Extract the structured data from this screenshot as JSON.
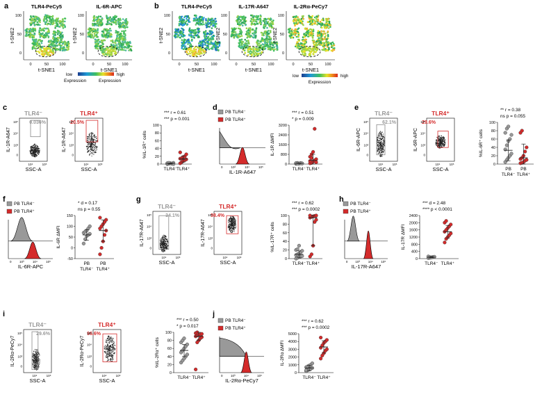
{
  "panels": {
    "a": {
      "letter": "a",
      "titles": [
        "TLR4-PeCy5",
        "IL-6R-APC"
      ],
      "xlabel": "t-SNE1",
      "ylabel": "t-SNE2",
      "ticks_x": [
        "0",
        "50",
        "100"
      ],
      "ticks_y": [
        "0",
        "50",
        "100"
      ]
    },
    "b": {
      "letter": "b",
      "titles": [
        "TLR4-PeCy5",
        "IL-17R-A647",
        "IL-2Rα-PeCy7"
      ],
      "xlabel": "t-SNE1",
      "ylabel": "t-SNE2",
      "ticks_x": [
        "0",
        "50",
        "100"
      ],
      "ticks_y": [
        "0",
        "50",
        "100"
      ]
    },
    "legend_a": {
      "low": "low",
      "high": "high",
      "expr1": "Expression",
      "expr2": "Expression"
    },
    "legend_b": {
      "low": "low",
      "high": "high",
      "expr": "Expression"
    },
    "c": {
      "letter": "c",
      "neg_title": "TLR4⁻",
      "pos_title": "TLR4⁺",
      "neg_pct": "0.036%",
      "pos_pct": "20.5%",
      "ylabel": "IL-1R-A647",
      "xlabel": "SSC-A",
      "stat_r": "r = 0.61",
      "stat_p": "p = 0.001",
      "stars_r": "***",
      "stars_p": "***",
      "yaxis": "%IL-1R⁺ cells",
      "yticks": [
        "0",
        "20",
        "40",
        "60",
        "80",
        "100"
      ],
      "xcats": [
        "TLR4⁻",
        "TLR4⁺"
      ]
    },
    "d": {
      "letter": "d",
      "legend_neg": "PB TLR4⁻",
      "legend_pos": "PB TLR4⁺",
      "xlabel": "IL-1R-A647",
      "stat_r": "r = 0.51",
      "stat_p": "p = 0.009",
      "stars_r": "***",
      "stars_p": "*",
      "yaxis": "IL-1R ΔMFI",
      "yticks": [
        "0",
        "800",
        "1600",
        "2400",
        "3200"
      ],
      "xcats": [
        "TLR4⁻",
        "TLR4⁺"
      ]
    },
    "e": {
      "letter": "e",
      "neg_title": "TLR4⁻",
      "pos_title": "TLR4⁺",
      "neg_pct": "62.1%",
      "pos_pct": "29.6%",
      "ylabel": "IL-6R-APC",
      "xlabel": "SSC-A",
      "stat_r": "r = 0.38",
      "stat_p": "p = 0.055",
      "stars_r": "**",
      "stars_p": "ns",
      "yaxis": "%IL-6R⁺ cells",
      "yticks": [
        "0",
        "20",
        "40",
        "60",
        "80",
        "100"
      ],
      "xcats": [
        "PB TLR4⁻",
        "PB TLR4⁺"
      ]
    },
    "f": {
      "letter": "f",
      "legend_neg": "PB TLR4⁻",
      "legend_pos": "PB TLR4⁺",
      "xlabel": "IL-6R-APC",
      "stat_r": "d = 0.17",
      "stat_p": "p = 0.55",
      "stars_r": "*",
      "stars_p": "ns",
      "yaxis": "IL-6R ΔMFI",
      "yticks": [
        "-50",
        "0",
        "50",
        "100",
        "150"
      ],
      "xcats": [
        "PB TLR4⁻",
        "PB TLR4⁺"
      ]
    },
    "g": {
      "letter": "g",
      "neg_title": "TLR4⁻",
      "pos_title": "TLR4⁺",
      "neg_pct": "34.1%",
      "pos_pct": "98.4%",
      "ylabel": "IL-17R-A647",
      "xlabel": "SSC-A",
      "stat_r": "r = 0.62",
      "stat_p": "p = 0.0002",
      "stars_r": "***",
      "stars_p": "***",
      "yaxis": "%IL-17R⁺ cells",
      "yticks": [
        "0",
        "20",
        "40",
        "60",
        "80",
        "100"
      ],
      "xcats": [
        "TLR4⁻",
        "TLR4⁺"
      ]
    },
    "h": {
      "letter": "h",
      "legend_neg": "PB TLR4⁻",
      "legend_pos": "PB TLR4⁺",
      "xlabel": "IL-17R-A647",
      "stat_r": "d = 2.48",
      "stat_p": "p < 0.0001",
      "stars_r": "***",
      "stars_p": "****",
      "yaxis": "IL-17R ΔMFI",
      "yticks": [
        "0",
        "400",
        "800",
        "1200",
        "1600",
        "2000",
        "2400"
      ],
      "xcats": [
        "TLR4⁻",
        "TLR4⁺"
      ]
    },
    "i": {
      "letter": "i",
      "neg_title": "TLR4⁻",
      "pos_title": "TLR4⁺",
      "neg_pct": "29.6%",
      "pos_pct": "96.6%",
      "ylabel": "IL-2Rα-PeCy7",
      "xlabel": "SSC-A",
      "stat_r": "r = 0.50",
      "stat_p": "p = 0.017",
      "stars_r": "***",
      "stars_p": "*",
      "yaxis": "%IL-2Rα⁺ cells",
      "yticks": [
        "0",
        "20",
        "40",
        "60",
        "80",
        "100"
      ],
      "xcats": [
        "TLR4⁻",
        "TLR4⁺"
      ]
    },
    "j": {
      "letter": "j",
      "legend_neg": "PB TLR4⁻",
      "legend_pos": "PB TLR4⁺",
      "xlabel": "IL-2Rα-PeCy7",
      "stat_r": "r = 0.62",
      "stat_p": "p = 0.0002",
      "stars_r": "***",
      "stars_p": "***",
      "yaxis": "IL-2Rα ΔMFI",
      "yticks": [
        "0",
        "1000",
        "2000",
        "3000",
        "4000",
        "5000"
      ],
      "xcats": [
        "TLR4⁻",
        "TLR4⁺"
      ]
    }
  },
  "colors": {
    "neg": "#999999",
    "pos": "#d42b2b",
    "neg_text": "#999999",
    "pos_text": "#d42b2b"
  },
  "chart_data": [
    {
      "panel": "c",
      "type": "scatter",
      "ylim": [
        0,
        100
      ],
      "series": [
        {
          "name": "TLR4-",
          "values": [
            0,
            1,
            2,
            1,
            3,
            2,
            1,
            2,
            1,
            0,
            2,
            3
          ]
        },
        {
          "name": "TLR4+",
          "values": [
            2,
            5,
            8,
            10,
            12,
            14,
            15,
            18,
            20,
            25,
            30,
            5,
            8
          ]
        }
      ],
      "mean": [
        1.5,
        13
      ],
      "sd": [
        1,
        8
      ]
    },
    {
      "panel": "d",
      "type": "scatter",
      "ylim": [
        0,
        3200
      ],
      "series": [
        {
          "name": "TLR4-",
          "values": [
            30,
            60,
            40,
            80,
            50,
            70,
            90,
            40,
            60,
            50,
            80,
            30
          ]
        },
        {
          "name": "TLR4+",
          "values": [
            60,
            100,
            200,
            300,
            400,
            600,
            800,
            1000,
            2900,
            150,
            250,
            500
          ]
        }
      ],
      "mean": [
        55,
        300
      ],
      "sd": [
        20,
        500
      ]
    },
    {
      "panel": "e",
      "type": "scatter",
      "ylim": [
        0,
        100
      ],
      "series": [
        {
          "name": "PB TLR4-",
          "values": [
            5,
            10,
            15,
            20,
            25,
            35,
            45,
            55,
            60,
            70,
            75,
            85,
            90
          ]
        },
        {
          "name": "PB TLR4+",
          "values": [
            2,
            3,
            5,
            8,
            10,
            12,
            15,
            20,
            30,
            40,
            75,
            80
          ]
        }
      ],
      "mean": [
        33,
        15
      ],
      "sd": [
        25,
        33
      ]
    },
    {
      "panel": "f",
      "type": "scatter",
      "ylim": [
        -50,
        150
      ],
      "series": [
        {
          "name": "PB TLR4-",
          "values": [
            20,
            40,
            55,
            60,
            65,
            70,
            75,
            80,
            90,
            100
          ]
        },
        {
          "name": "PB TLR4+",
          "values": [
            -30,
            0,
            30,
            60,
            80,
            90,
            100,
            110,
            120,
            130,
            140
          ]
        }
      ],
      "mean": [
        60,
        80
      ],
      "sd": [
        25,
        50
      ]
    },
    {
      "panel": "g",
      "type": "scatter",
      "ylim": [
        0,
        100
      ],
      "series": [
        {
          "name": "TLR4-",
          "values": [
            0,
            2,
            4,
            5,
            6,
            8,
            10,
            12,
            15,
            18,
            20,
            22,
            30
          ]
        },
        {
          "name": "TLR4+",
          "values": [
            5,
            10,
            30,
            85,
            90,
            95,
            97,
            98,
            99,
            100,
            100
          ]
        }
      ],
      "mean": [
        10,
        95
      ],
      "sd": [
        8,
        65
      ]
    },
    {
      "panel": "h",
      "type": "scatter",
      "ylim": [
        0,
        2400
      ],
      "series": [
        {
          "name": "TLR4-",
          "values": [
            30,
            50,
            70,
            90,
            100,
            120,
            80,
            60
          ]
        },
        {
          "name": "TLR4+",
          "values": [
            900,
            1100,
            1200,
            1300,
            1400,
            1500,
            1600,
            1700,
            1800,
            1900,
            2000,
            2100
          ]
        }
      ],
      "mean": [
        80,
        1500
      ],
      "sd": [
        30,
        350
      ]
    },
    {
      "panel": "i",
      "type": "scatter",
      "ylim": [
        0,
        100
      ],
      "series": [
        {
          "name": "TLR4-",
          "values": [
            25,
            30,
            35,
            40,
            45,
            50,
            55,
            60,
            65,
            70,
            75,
            80,
            85
          ]
        },
        {
          "name": "TLR4+",
          "values": [
            8,
            75,
            80,
            85,
            88,
            90,
            92,
            94,
            95,
            96,
            98,
            100
          ]
        }
      ],
      "mean": [
        55,
        90
      ],
      "sd": [
        15,
        10
      ]
    },
    {
      "panel": "j",
      "type": "scatter",
      "ylim": [
        0,
        5000
      ],
      "series": [
        {
          "name": "TLR4-",
          "values": [
            200,
            300,
            400,
            500,
            600,
            700,
            800,
            900,
            1000,
            1200,
            300
          ]
        },
        {
          "name": "TLR4+",
          "values": [
            1800,
            2200,
            2500,
            2800,
            3000,
            3200,
            3500,
            3800,
            4000,
            4200,
            4500
          ]
        }
      ],
      "mean": [
        600,
        3300
      ],
      "sd": [
        350,
        800
      ]
    }
  ]
}
